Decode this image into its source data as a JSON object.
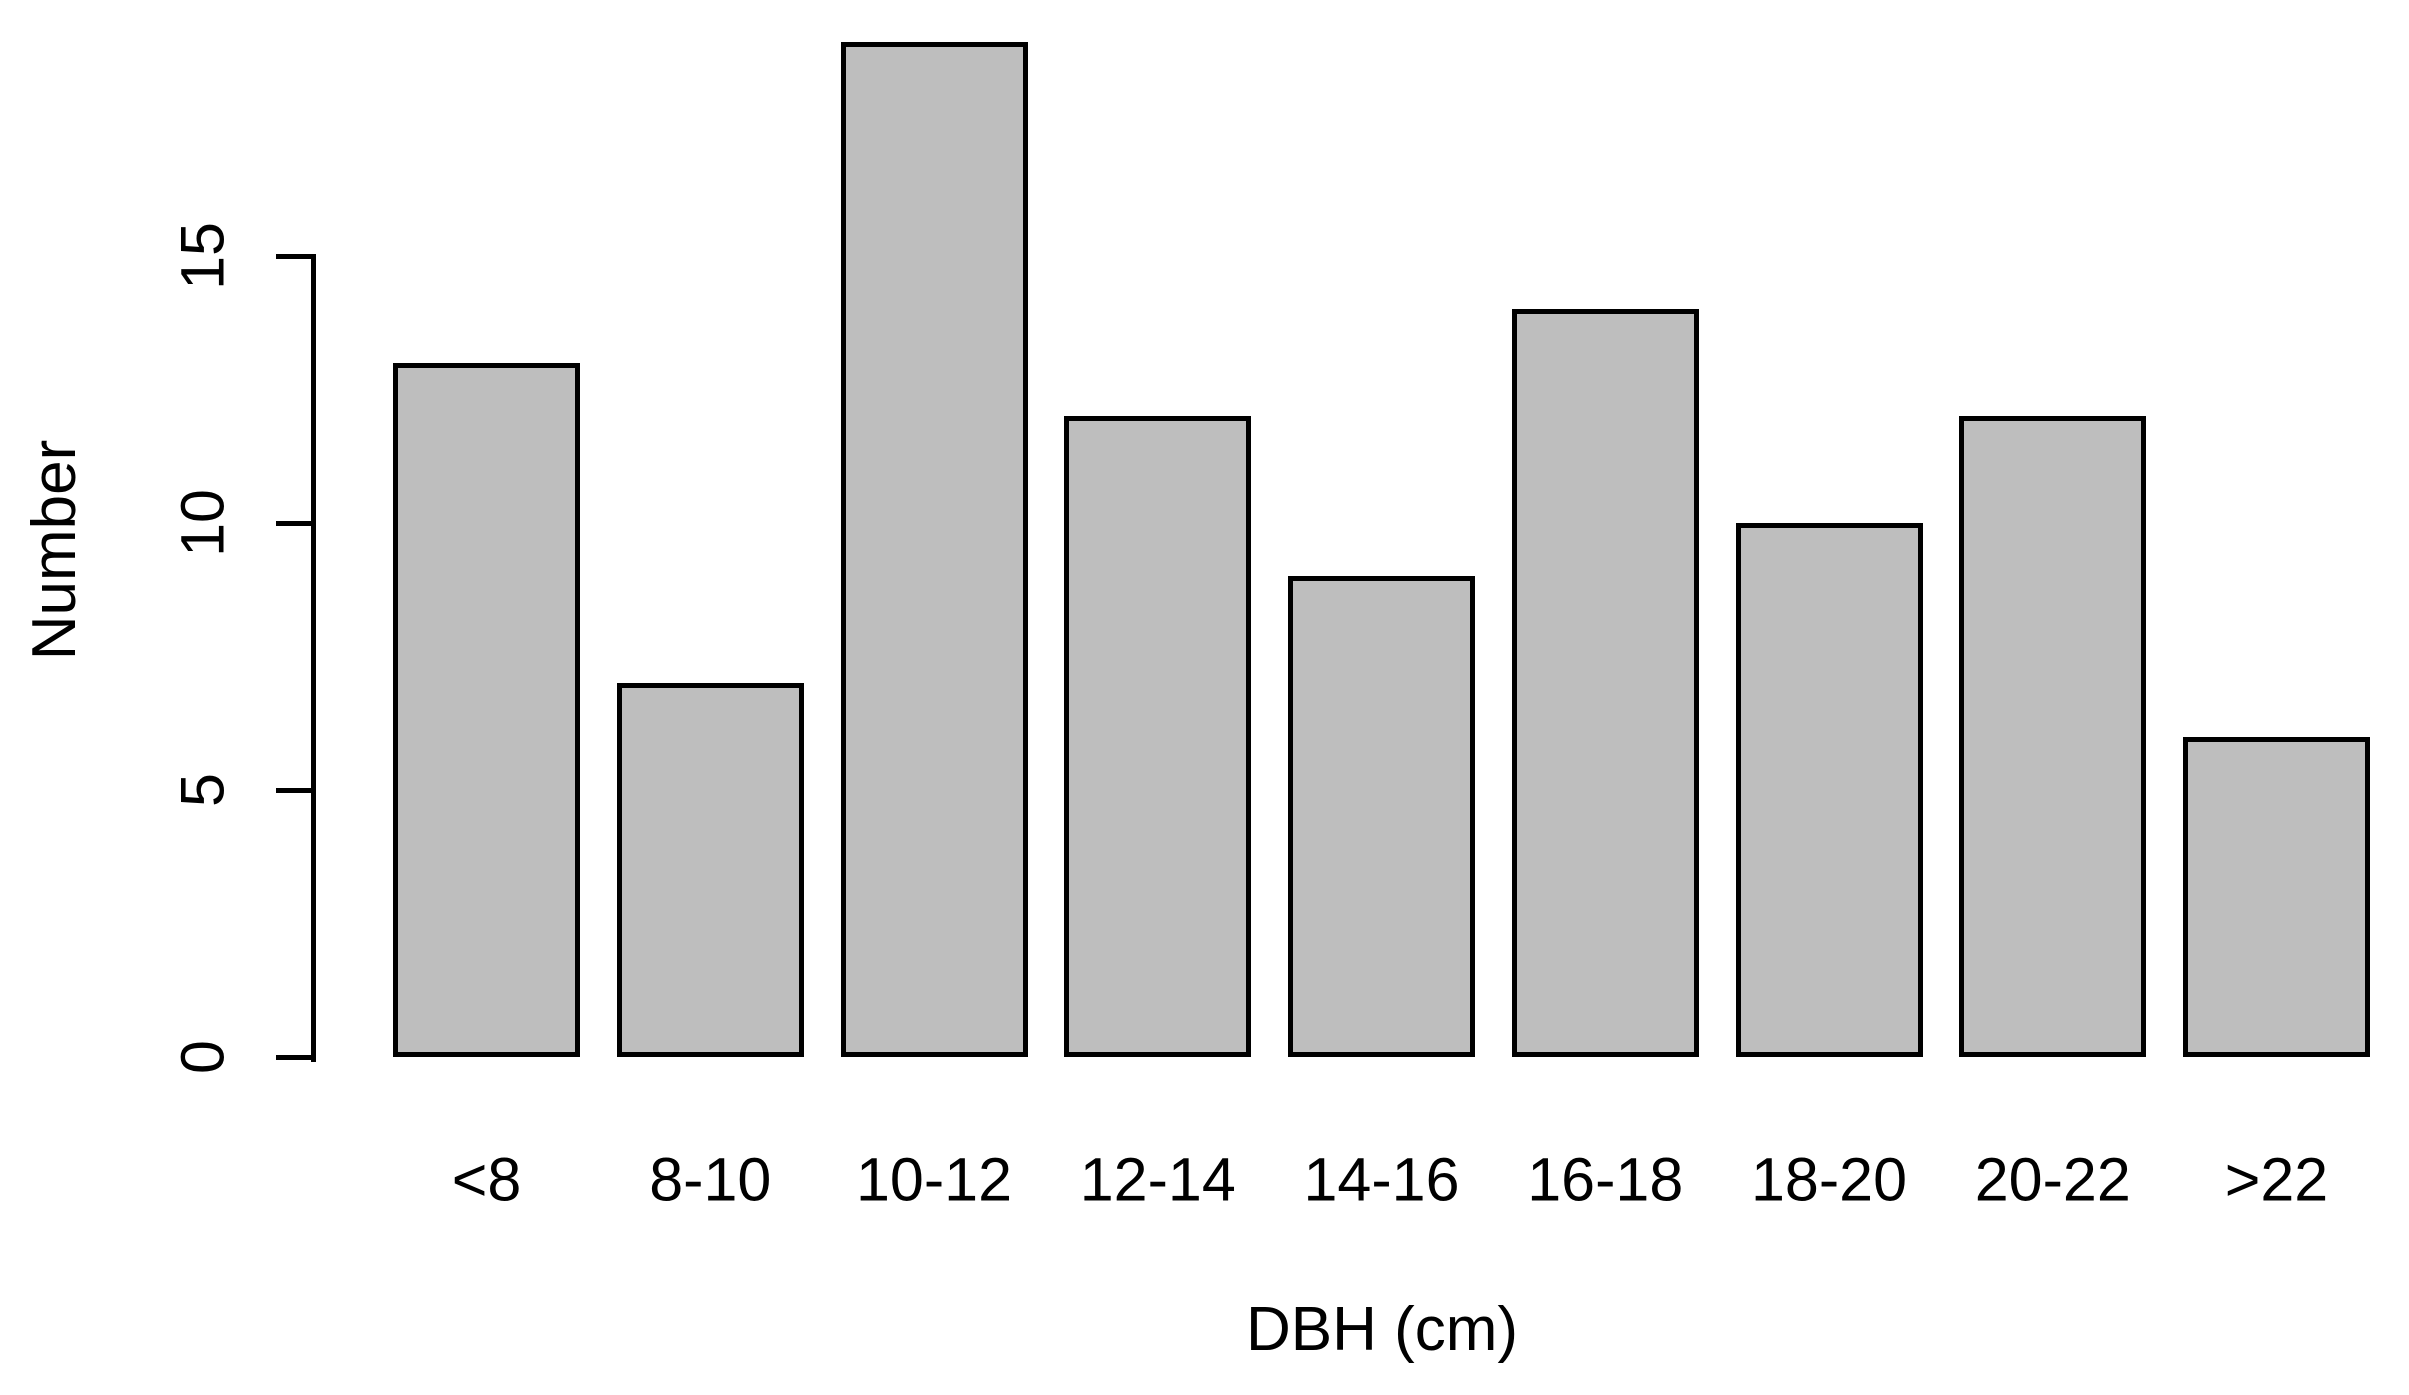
{
  "chart_data": {
    "type": "bar",
    "categories": [
      "<8",
      "8-10",
      "10-12",
      "12-14",
      "14-16",
      "16-18",
      "18-20",
      "20-22",
      ">22"
    ],
    "values": [
      13,
      7,
      19,
      12,
      9,
      14,
      10,
      12,
      6
    ],
    "title": "",
    "xlabel": "DBH (cm)",
    "ylabel": "Number",
    "yticks": [
      0,
      5,
      10,
      15
    ],
    "ylim": [
      0,
      19
    ],
    "grid": false,
    "legend": false,
    "bar_fill": "#BEBEBE",
    "bar_border": "#000000",
    "axis_color": "#000000"
  }
}
